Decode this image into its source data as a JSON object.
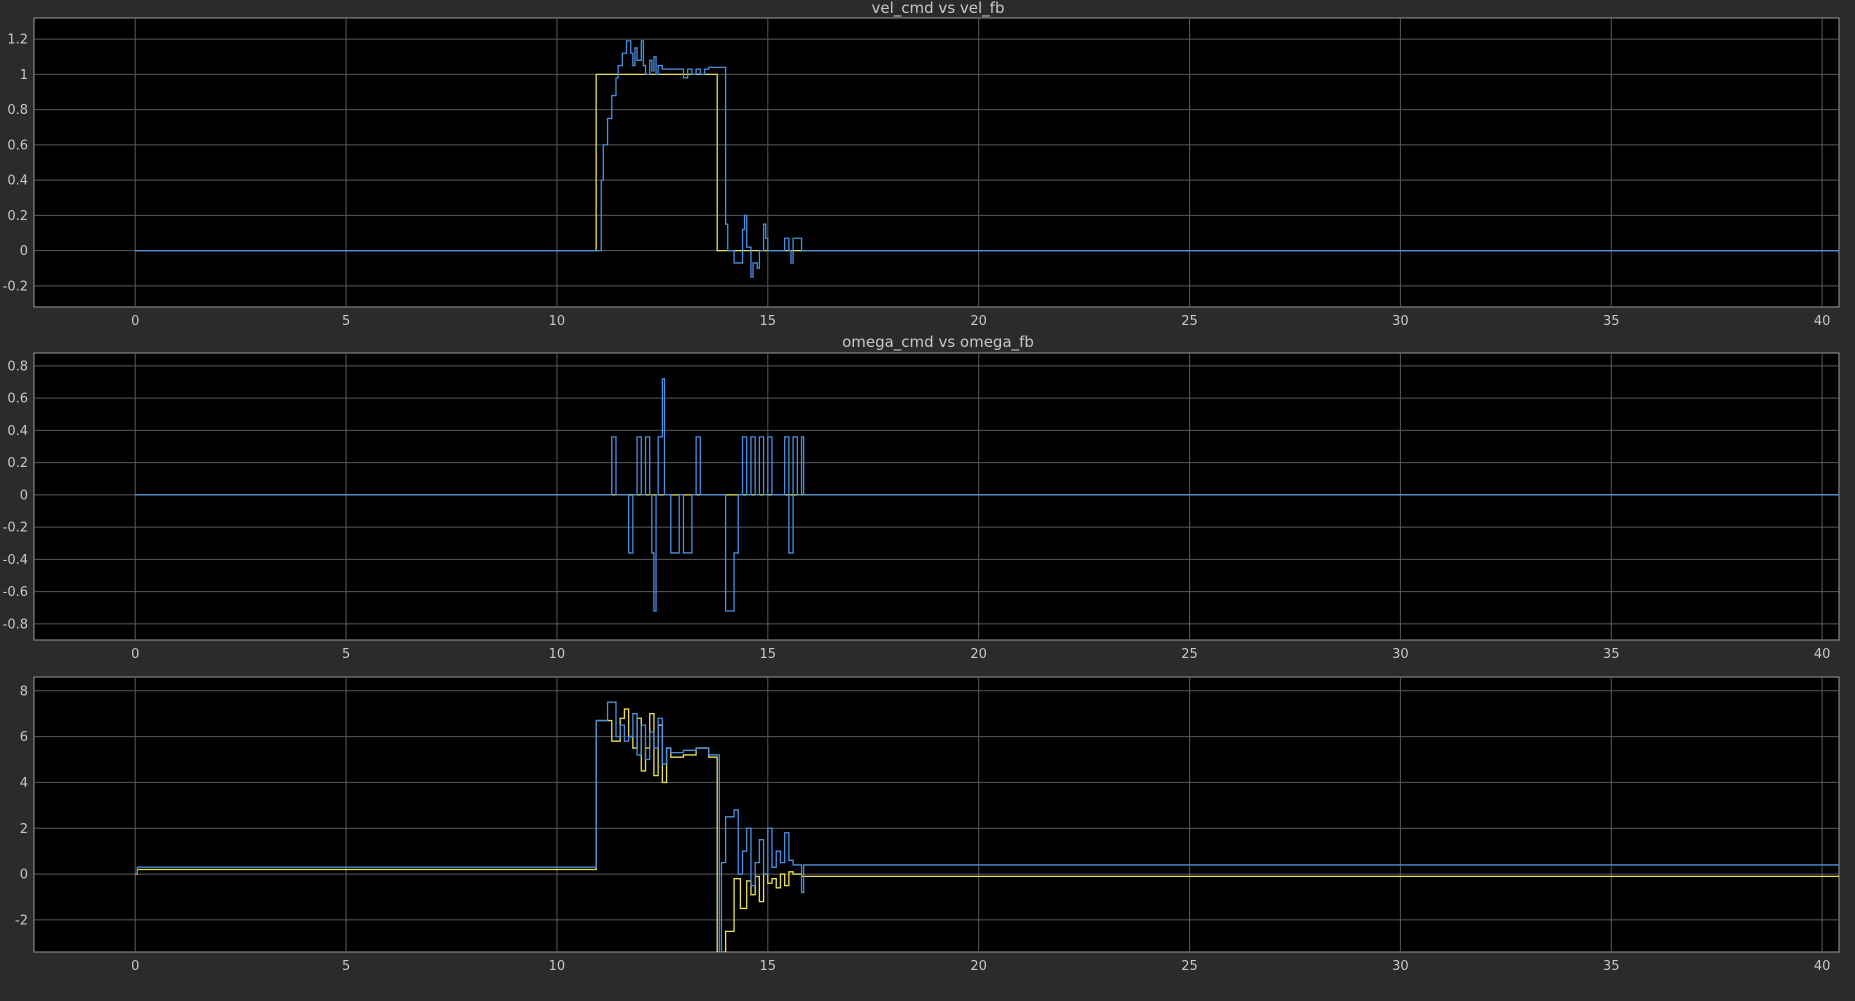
{
  "colors": {
    "figure_bg": "#2b2b2b",
    "axes_bg": "#000000",
    "grid": "#5a5a5a",
    "text": "#c8c8c8",
    "series_cmd": "#e8e05a",
    "series_fb": "#4a8fe0"
  },
  "chart_data": [
    {
      "type": "line",
      "title": "vel_cmd vs vel_fb",
      "xlabel": "",
      "ylabel": "",
      "xlim": [
        -2.4,
        40.4
      ],
      "ylim": [
        -0.32,
        1.32
      ],
      "xticks": [
        0,
        5,
        10,
        15,
        20,
        25,
        30,
        35,
        40
      ],
      "yticks": [
        -0.2,
        0,
        0.2,
        0.4,
        0.6,
        0.8,
        1,
        1.2
      ],
      "ytick_labels": [
        "-0.2",
        "0",
        "0.2",
        "0.4",
        "0.6",
        "0.8",
        "1",
        "1.2"
      ],
      "grid": true,
      "series": [
        {
          "color": "#e8e05a",
          "step": true,
          "x": [
            0,
            10.93,
            10.93,
            13.8,
            13.8,
            14.1,
            14.1,
            40.4
          ],
          "y": [
            0,
            0,
            1.0,
            1.0,
            0,
            0,
            0,
            0
          ]
        },
        {
          "color": "#4a8fe0",
          "step": true,
          "x": [
            0,
            11.05,
            11.1,
            11.2,
            11.3,
            11.4,
            11.45,
            11.55,
            11.65,
            11.75,
            11.8,
            11.85,
            11.9,
            12.0,
            12.05,
            12.1,
            12.2,
            12.25,
            12.3,
            12.35,
            12.4,
            12.5,
            12.7,
            12.9,
            13.0,
            13.1,
            13.2,
            13.3,
            13.4,
            13.5,
            13.6,
            14.0,
            14.05,
            14.1,
            14.2,
            14.4,
            14.45,
            14.5,
            14.6,
            14.65,
            14.75,
            14.8,
            14.9,
            14.95,
            15.0,
            15.1,
            15.4,
            15.5,
            15.55,
            15.6,
            15.7,
            15.8,
            15.85,
            40.4
          ],
          "y": [
            0,
            0.4,
            0.6,
            0.75,
            0.88,
            0.98,
            1.05,
            1.12,
            1.19,
            1.12,
            1.05,
            1.15,
            1.08,
            1.19,
            1.05,
            1.0,
            1.08,
            1.02,
            1.1,
            1.0,
            1.05,
            1.03,
            1.03,
            1.03,
            0.98,
            1.03,
            1.0,
            1.03,
            1.0,
            1.03,
            1.04,
            0.15,
            0,
            0,
            -0.07,
            0.12,
            0.2,
            0.02,
            -0.15,
            -0.07,
            -0.1,
            0,
            0.15,
            0.07,
            0,
            0,
            0.07,
            0,
            -0.07,
            0.07,
            0.07,
            0,
            0,
            0
          ]
        }
      ]
    },
    {
      "type": "line",
      "title": "omega_cmd vs omega_fb",
      "xlabel": "",
      "ylabel": "",
      "xlim": [
        -2.4,
        40.4
      ],
      "ylim": [
        -0.9,
        0.88
      ],
      "xticks": [
        0,
        5,
        10,
        15,
        20,
        25,
        30,
        35,
        40
      ],
      "yticks": [
        -0.8,
        -0.6,
        -0.4,
        -0.2,
        0,
        0.2,
        0.4,
        0.6,
        0.8
      ],
      "ytick_labels": [
        "-0.8",
        "-0.6",
        "-0.4",
        "-0.2",
        "0",
        "0.2",
        "0.4",
        "0.6",
        "0.8"
      ],
      "grid": true,
      "series": [
        {
          "color": "#e8e05a",
          "step": true,
          "x": [
            0,
            40.4
          ],
          "y": [
            0,
            0
          ]
        },
        {
          "color": "#4a8fe0",
          "step": true,
          "x": [
            0,
            11.3,
            11.4,
            11.7,
            11.8,
            11.9,
            12.0,
            12.1,
            12.2,
            12.25,
            12.3,
            12.35,
            12.4,
            12.5,
            12.55,
            12.7,
            12.9,
            13.0,
            13.1,
            13.2,
            13.3,
            13.4,
            14.0,
            14.1,
            14.2,
            14.3,
            14.4,
            14.5,
            14.6,
            14.7,
            14.8,
            14.9,
            15.0,
            15.1,
            15.4,
            15.5,
            15.6,
            15.7,
            15.8,
            15.85,
            40.4
          ],
          "y": [
            0,
            0.36,
            0,
            -0.36,
            0,
            0.36,
            0,
            0.36,
            0,
            -0.36,
            -0.72,
            0,
            0.36,
            0.72,
            0,
            -0.36,
            0,
            -0.36,
            -0.36,
            0,
            0.36,
            0,
            -0.72,
            -0.72,
            -0.36,
            0,
            0.36,
            0,
            0.36,
            0,
            0.36,
            0,
            0.36,
            0,
            0.36,
            -0.36,
            0.36,
            0,
            0.36,
            0,
            0
          ]
        }
      ]
    },
    {
      "type": "line",
      "title": "",
      "xlabel": "",
      "ylabel": "",
      "xlim": [
        -2.4,
        40.4
      ],
      "ylim": [
        -3.4,
        8.6
      ],
      "xticks": [
        0,
        5,
        10,
        15,
        20,
        25,
        30,
        35,
        40
      ],
      "yticks": [
        -2,
        0,
        2,
        4,
        6,
        8
      ],
      "ytick_labels": [
        "-2",
        "0",
        "2",
        "4",
        "6",
        "8"
      ],
      "grid": true,
      "series": [
        {
          "color": "#e8e05a",
          "step": true,
          "x": [
            0,
            0.05,
            10.93,
            11.3,
            11.5,
            11.6,
            11.7,
            11.8,
            11.9,
            12.0,
            12.1,
            12.2,
            12.3,
            12.4,
            12.5,
            12.6,
            12.7,
            13.0,
            13.3,
            13.6,
            13.8,
            14.0,
            14.2,
            14.35,
            14.5,
            14.6,
            14.7,
            14.8,
            14.9,
            15.0,
            15.1,
            15.2,
            15.3,
            15.4,
            15.5,
            15.6,
            15.8,
            15.85,
            40.4
          ],
          "y": [
            0,
            0.2,
            6.7,
            5.8,
            6.8,
            7.2,
            6.0,
            5.5,
            6.8,
            4.5,
            5.5,
            7.0,
            4.3,
            6.5,
            4.0,
            5.5,
            5.1,
            5.2,
            5.5,
            5.1,
            -3.4,
            -2.5,
            -0.2,
            -1.5,
            -0.3,
            -0.9,
            -0.1,
            -1.2,
            0.0,
            -0.4,
            -0.2,
            -0.6,
            0.0,
            -0.5,
            0.1,
            0.0,
            -0.1,
            -0.1,
            -0.1
          ]
        },
        {
          "color": "#4a8fe0",
          "step": true,
          "x": [
            0,
            0.05,
            10.93,
            11.2,
            11.4,
            11.5,
            11.6,
            11.7,
            11.8,
            11.9,
            12.0,
            12.1,
            12.2,
            12.3,
            12.4,
            12.5,
            12.6,
            12.7,
            13.0,
            13.3,
            13.6,
            13.85,
            13.9,
            14.0,
            14.2,
            14.3,
            14.4,
            14.5,
            14.6,
            14.7,
            14.8,
            14.9,
            15.0,
            15.1,
            15.2,
            15.3,
            15.4,
            15.5,
            15.6,
            15.8,
            15.85,
            40.4
          ],
          "y": [
            0,
            0.3,
            6.7,
            7.5,
            6.0,
            6.5,
            5.8,
            6.0,
            7.0,
            5.2,
            6.5,
            5.0,
            6.2,
            5.5,
            6.8,
            4.8,
            5.5,
            5.3,
            5.4,
            5.5,
            5.2,
            -3.4,
            0.5,
            2.5,
            2.8,
            0.0,
            1.0,
            2.0,
            -0.5,
            0.5,
            1.5,
            0.0,
            2.0,
            0.3,
            1.0,
            0.5,
            1.8,
            0.6,
            0.4,
            -0.8,
            0.4,
            0.4
          ]
        }
      ]
    }
  ]
}
